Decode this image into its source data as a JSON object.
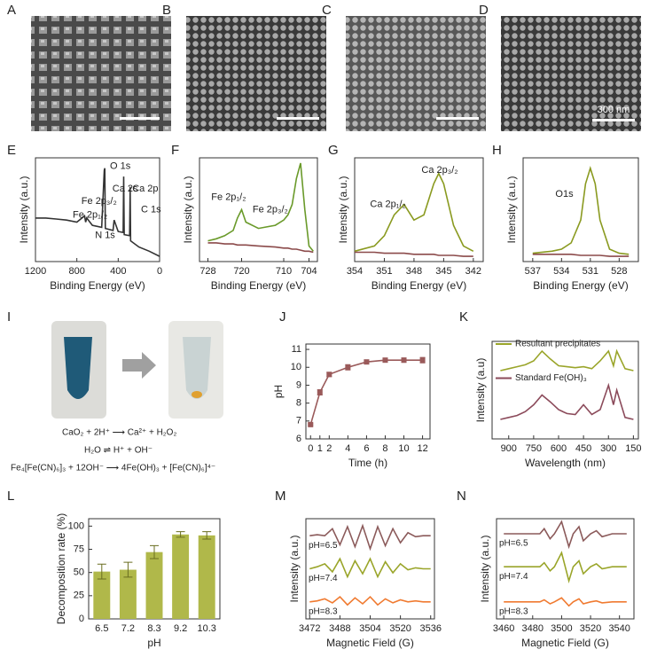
{
  "panel_labels": [
    "A",
    "B",
    "C",
    "D",
    "E",
    "F",
    "G",
    "H",
    "I",
    "J",
    "K",
    "L",
    "M",
    "N"
  ],
  "sem": {
    "scale_label": "300 nm"
  },
  "reaction": {
    "equations": [
      "CaO₂ + 2H⁺ ⟶ Ca²⁺ + H₂O₂",
      "H₂O ⇌ H⁺ + OH⁻",
      "Fe₄[Fe(CN)₆]₃ + 12OH⁻ ⟶ 4Fe(OH)₃ + [Fe(CN)₆]⁴⁻"
    ]
  },
  "chart_data": [
    {
      "type": "line",
      "xlabel": "Binding Energy (eV)",
      "ylabel": "Intensity (a.u.)",
      "xlim": [
        1200,
        0
      ],
      "xticks": [
        1200,
        800,
        400,
        0
      ],
      "ylim": [
        0,
        1
      ],
      "annotations": [
        "Fe 2p₁/₂",
        "Fe 2p₃/₂",
        "O 1s",
        "Ca 2s",
        "Ca 2p",
        "C 1s",
        "N 1s"
      ],
      "x": [
        1200,
        1100,
        1000,
        900,
        800,
        725,
        715,
        705,
        650,
        560,
        535,
        530,
        525,
        450,
        440,
        400,
        352,
        347,
        342,
        290,
        285,
        280,
        200,
        100,
        0
      ],
      "series": [
        {
          "color": "#333333",
          "values": [
            0.42,
            0.42,
            0.41,
            0.4,
            0.38,
            0.44,
            0.38,
            0.42,
            0.35,
            0.33,
            0.88,
            0.9,
            0.32,
            0.3,
            0.4,
            0.29,
            0.28,
            0.82,
            0.26,
            0.25,
            0.72,
            0.2,
            0.14,
            0.1,
            0.05
          ]
        }
      ]
    },
    {
      "type": "line",
      "xlabel": "Binding Energy (eV)",
      "ylabel": "Intensity (a.u.)",
      "xlim": [
        730,
        702
      ],
      "xticks": [
        728,
        720,
        710,
        704
      ],
      "ylim": [
        0,
        1
      ],
      "annotations": [
        "Fe 2p₁/₂",
        "Fe 2p₃/₂"
      ],
      "x": [
        728,
        726,
        724,
        722,
        721,
        720,
        719,
        716,
        712,
        710,
        709,
        708,
        707,
        706,
        705,
        704,
        703
      ],
      "series": [
        {
          "color": "#6a9a2a",
          "values": [
            0.2,
            0.22,
            0.25,
            0.3,
            0.42,
            0.5,
            0.38,
            0.32,
            0.35,
            0.4,
            0.45,
            0.55,
            0.8,
            0.95,
            0.5,
            0.15,
            0.1
          ]
        },
        {
          "color": "#8b4a4a",
          "values": [
            0.18,
            0.18,
            0.17,
            0.17,
            0.16,
            0.16,
            0.16,
            0.15,
            0.14,
            0.13,
            0.13,
            0.12,
            0.12,
            0.11,
            0.1,
            0.1,
            0.09
          ]
        }
      ]
    },
    {
      "type": "line",
      "xlabel": "Binding Energy (eV)",
      "ylabel": "Intensity (a.u.)",
      "xlim": [
        354,
        341
      ],
      "xticks": [
        354,
        351,
        348,
        345,
        342
      ],
      "ylim": [
        0,
        1
      ],
      "annotations": [
        "Ca 2p₁/₂",
        "Ca 2p₃/₂"
      ],
      "x": [
        354,
        352,
        351,
        350,
        349,
        348,
        347,
        346,
        345.5,
        345,
        344,
        343,
        342
      ],
      "series": [
        {
          "color": "#8a9a20",
          "values": [
            0.1,
            0.15,
            0.25,
            0.45,
            0.55,
            0.4,
            0.45,
            0.75,
            0.85,
            0.75,
            0.35,
            0.15,
            0.1
          ]
        },
        {
          "color": "#8b4a4a",
          "values": [
            0.09,
            0.09,
            0.08,
            0.08,
            0.08,
            0.07,
            0.07,
            0.07,
            0.06,
            0.06,
            0.06,
            0.05,
            0.05
          ]
        }
      ]
    },
    {
      "type": "line",
      "xlabel": "Binding Energy (eV)",
      "ylabel": "Intensity (a.u.)",
      "xlim": [
        538,
        526
      ],
      "xticks": [
        537,
        534,
        531,
        528
      ],
      "ylim": [
        0,
        1
      ],
      "annotations": [
        "O1s"
      ],
      "x": [
        537,
        535,
        534,
        533,
        532,
        531.5,
        531,
        530.5,
        530,
        529,
        528,
        527
      ],
      "series": [
        {
          "color": "#8a9a20",
          "values": [
            0.08,
            0.1,
            0.12,
            0.18,
            0.4,
            0.75,
            0.9,
            0.75,
            0.4,
            0.12,
            0.08,
            0.07
          ]
        },
        {
          "color": "#8b4a4a",
          "values": [
            0.07,
            0.07,
            0.07,
            0.07,
            0.06,
            0.06,
            0.06,
            0.06,
            0.06,
            0.05,
            0.05,
            0.05
          ]
        }
      ]
    },
    {
      "type": "line",
      "xlabel": "Time (h)",
      "ylabel": "pH",
      "xlim": [
        -0.5,
        12.8
      ],
      "xticks": [
        0,
        1,
        2,
        4,
        6,
        8,
        10,
        12
      ],
      "ylim": [
        6,
        11.3
      ],
      "yticks": [
        6,
        7,
        8,
        9,
        10,
        11
      ],
      "markers": true,
      "x": [
        0,
        1,
        2,
        4,
        6,
        8,
        10,
        12
      ],
      "series": [
        {
          "color": "#9a5a5a",
          "values": [
            6.8,
            8.6,
            9.6,
            10.0,
            10.3,
            10.4,
            10.4,
            10.4
          ],
          "errors": [
            0.05,
            0.15,
            0.12,
            0.15,
            0.1,
            0.1,
            0.12,
            0.15
          ]
        }
      ]
    },
    {
      "type": "line",
      "xlabel": "Wavelength (nm)",
      "ylabel": "Intensity (a.u)",
      "xlim": [
        1000,
        120
      ],
      "xticks": [
        900,
        750,
        600,
        450,
        300,
        150
      ],
      "ylim": [
        0,
        1
      ],
      "x": [
        950,
        900,
        850,
        800,
        750,
        700,
        650,
        600,
        550,
        500,
        450,
        400,
        350,
        300,
        270,
        250,
        200,
        150
      ],
      "series": [
        {
          "name": "Resultant  precipitates",
          "color": "#9aa52a",
          "values": [
            0.7,
            0.72,
            0.74,
            0.76,
            0.8,
            0.9,
            0.82,
            0.75,
            0.74,
            0.73,
            0.74,
            0.72,
            0.8,
            0.9,
            0.75,
            0.9,
            0.72,
            0.7
          ]
        },
        {
          "name": "Standard Fe(OH)₃",
          "color": "#8b4a5a",
          "values": [
            0.2,
            0.22,
            0.24,
            0.28,
            0.35,
            0.45,
            0.38,
            0.3,
            0.26,
            0.25,
            0.35,
            0.25,
            0.3,
            0.55,
            0.35,
            0.5,
            0.22,
            0.2
          ]
        }
      ]
    },
    {
      "type": "bar",
      "xlabel": "pH",
      "ylabel": "Decomposition rate (%)",
      "categories": [
        "6.5",
        "7.2",
        "8.3",
        "9.2",
        "10.3"
      ],
      "ylim": [
        0,
        108
      ],
      "yticks": [
        0,
        25,
        50,
        75,
        100
      ],
      "series": [
        {
          "color": "#b0b84a",
          "values": [
            51,
            53,
            72,
            91,
            90
          ],
          "errors": [
            8,
            8,
            7,
            3,
            4
          ]
        }
      ]
    },
    {
      "type": "line",
      "xlabel": "Magnetic Field (G)",
      "ylabel": "Intensity (a.u.)",
      "xlim": [
        3470,
        3538
      ],
      "xticks": [
        3472,
        3488,
        3504,
        3520,
        3536
      ],
      "ylim": [
        0,
        1
      ],
      "x": [
        3472,
        3476,
        3480,
        3484,
        3488,
        3492,
        3496,
        3500,
        3504,
        3508,
        3512,
        3516,
        3520,
        3524,
        3528,
        3532,
        3536
      ],
      "series": [
        {
          "name": "pH=6.5",
          "color": "#8b5a5a",
          "values": [
            0.83,
            0.84,
            0.83,
            0.9,
            0.74,
            0.92,
            0.72,
            0.93,
            0.7,
            0.92,
            0.73,
            0.9,
            0.76,
            0.86,
            0.82,
            0.83,
            0.83
          ]
        },
        {
          "name": "pH=7.4",
          "color": "#9aa52a",
          "values": [
            0.5,
            0.52,
            0.55,
            0.47,
            0.6,
            0.42,
            0.58,
            0.45,
            0.6,
            0.42,
            0.57,
            0.46,
            0.55,
            0.49,
            0.51,
            0.5,
            0.5
          ]
        },
        {
          "name": "pH=8.3",
          "color": "#f07a30",
          "values": [
            0.17,
            0.18,
            0.2,
            0.16,
            0.22,
            0.14,
            0.21,
            0.15,
            0.22,
            0.14,
            0.2,
            0.16,
            0.19,
            0.17,
            0.18,
            0.17,
            0.17
          ]
        }
      ]
    },
    {
      "type": "line",
      "xlabel": "Magnetic Field (G)",
      "ylabel": "Intensity (a.u.)",
      "xlim": [
        3455,
        3550
      ],
      "xticks": [
        3460,
        3480,
        3500,
        3520,
        3540
      ],
      "ylim": [
        0,
        1
      ],
      "x": [
        3460,
        3465,
        3470,
        3475,
        3480,
        3485,
        3488,
        3492,
        3495,
        3500,
        3505,
        3508,
        3512,
        3515,
        3520,
        3524,
        3528,
        3535,
        3540,
        3545
      ],
      "series": [
        {
          "name": "pH=6.5",
          "color": "#8b5a5a",
          "values": [
            0.85,
            0.85,
            0.85,
            0.85,
            0.85,
            0.85,
            0.9,
            0.8,
            0.85,
            0.97,
            0.72,
            0.85,
            0.92,
            0.78,
            0.85,
            0.88,
            0.82,
            0.85,
            0.85,
            0.85
          ]
        },
        {
          "name": "pH=7.4",
          "color": "#9aa52a",
          "values": [
            0.52,
            0.52,
            0.52,
            0.52,
            0.52,
            0.52,
            0.56,
            0.48,
            0.52,
            0.66,
            0.38,
            0.52,
            0.58,
            0.45,
            0.52,
            0.55,
            0.5,
            0.52,
            0.52,
            0.52
          ]
        },
        {
          "name": "pH=8.3",
          "color": "#f07a30",
          "values": [
            0.17,
            0.17,
            0.17,
            0.17,
            0.17,
            0.17,
            0.19,
            0.15,
            0.17,
            0.21,
            0.13,
            0.17,
            0.2,
            0.15,
            0.17,
            0.18,
            0.16,
            0.17,
            0.17,
            0.17
          ]
        }
      ]
    }
  ]
}
